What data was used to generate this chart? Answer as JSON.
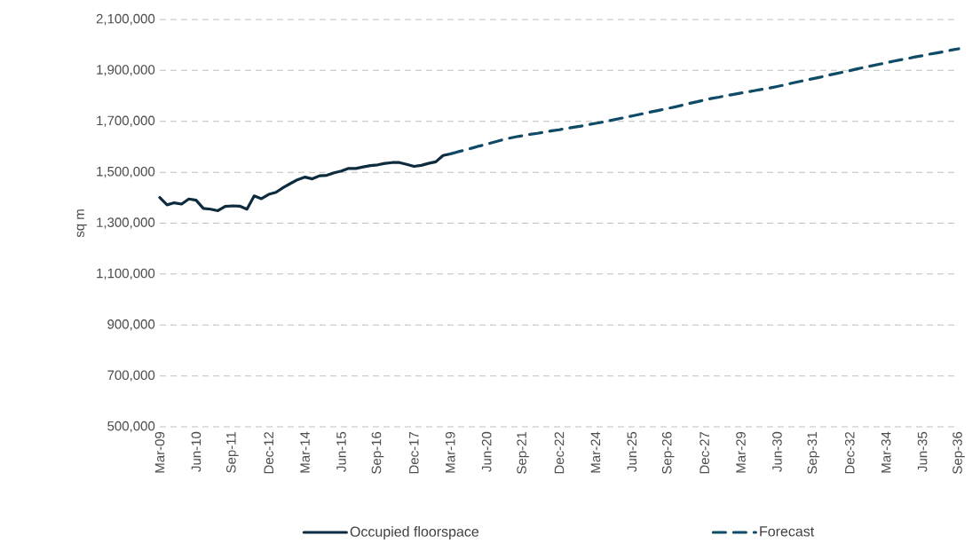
{
  "chart_data": {
    "type": "line",
    "ylabel": "sq m",
    "categories": [
      "Mar-09",
      null,
      null,
      null,
      null,
      "Jun-10",
      null,
      null,
      null,
      null,
      "Sep-11",
      null,
      null,
      null,
      null,
      "Dec-12",
      null,
      null,
      null,
      null,
      "Mar-14",
      null,
      null,
      null,
      null,
      "Jun-15",
      null,
      null,
      null,
      null,
      "Sep-16",
      null,
      null,
      null,
      null,
      "Dec-17",
      null,
      null,
      null,
      null,
      "Mar-19",
      null,
      null,
      null,
      null,
      "Jun-20",
      null,
      null,
      null,
      null,
      "Sep-21",
      null,
      null,
      null,
      null,
      "Dec-22",
      null,
      null,
      null,
      null,
      "Mar-24",
      null,
      null,
      null,
      null,
      "Jun-25",
      null,
      null,
      null,
      null,
      "Sep-26",
      null,
      null,
      null,
      null,
      "Dec-27",
      null,
      null,
      null,
      null,
      "Mar-29",
      null,
      null,
      null,
      null,
      "Jun-30",
      null,
      null,
      null,
      null,
      "Sep-31",
      null,
      null,
      null,
      null,
      "Dec-32",
      null,
      null,
      null,
      null,
      "Mar-34",
      null,
      null,
      null,
      null,
      "Jun-35",
      null,
      null,
      null,
      null,
      "Sep-36"
    ],
    "series": [
      {
        "name": "Occupied floorspace",
        "color": "#0d2b3e",
        "line_style": "solid",
        "values": [
          1401000,
          1372000,
          1380000,
          1375000,
          1395000,
          1390000,
          1358000,
          1355000,
          1349000,
          1366000,
          1368000,
          1367000,
          1355000,
          1407000,
          1396000,
          1413000,
          1421000,
          1440000,
          1456000,
          1471000,
          1481000,
          1474000,
          1486000,
          1488000,
          1498000,
          1505000,
          1515000,
          1515000,
          1521000,
          1526000,
          1529000,
          1535000,
          1538000,
          1538000,
          1531000,
          1523000,
          1527000,
          1535000,
          1541000,
          1566000,
          1572000,
          null,
          null,
          null,
          null,
          null,
          null,
          null,
          null,
          null,
          null,
          null,
          null,
          null,
          null,
          null,
          null,
          null,
          null,
          null,
          null,
          null,
          null,
          null,
          null,
          null,
          null,
          null,
          null,
          null,
          null,
          null,
          null,
          null,
          null,
          null,
          null,
          null,
          null,
          null,
          null,
          null,
          null,
          null,
          null,
          null,
          null,
          null,
          null,
          null,
          null,
          null,
          null,
          null,
          null,
          null,
          null,
          null,
          null,
          null,
          null,
          null,
          null,
          null,
          null,
          null,
          null,
          null,
          null,
          null,
          null
        ]
      },
      {
        "name": "Forecast",
        "color": "#0f4a66",
        "line_style": "dashed",
        "values": [
          null,
          null,
          null,
          null,
          null,
          null,
          null,
          null,
          null,
          null,
          null,
          null,
          null,
          null,
          null,
          null,
          null,
          null,
          null,
          null,
          null,
          null,
          null,
          null,
          null,
          null,
          null,
          null,
          null,
          null,
          null,
          null,
          null,
          null,
          null,
          null,
          null,
          null,
          null,
          null,
          1572000,
          1580000,
          1587000,
          1595000,
          1603000,
          1610000,
          1618000,
          1626000,
          1633000,
          1639000,
          1644000,
          1649000,
          1653000,
          1658000,
          1663000,
          1667000,
          1672000,
          1677000,
          1681000,
          1687000,
          1692000,
          1697000,
          1703000,
          1709000,
          1715000,
          1721000,
          1727000,
          1733000,
          1739000,
          1745000,
          1751000,
          1757000,
          1764000,
          1771000,
          1777000,
          1784000,
          1790000,
          1795000,
          1801000,
          1806000,
          1811000,
          1816000,
          1821000,
          1826000,
          1831000,
          1837000,
          1843000,
          1850000,
          1856000,
          1862000,
          1868000,
          1874000,
          1881000,
          1887000,
          1893000,
          1899000,
          1906000,
          1912000,
          1918000,
          1924000,
          1930000,
          1936000,
          1942000,
          1947000,
          1953000,
          1958000,
          1964000,
          1969000,
          1974000,
          1980000,
          1985000
        ]
      }
    ],
    "ylim": [
      500000,
      2100000
    ],
    "yticks": [
      {
        "value": 500000,
        "label": "500,000"
      },
      {
        "value": 700000,
        "label": "700,000"
      },
      {
        "value": 900000,
        "label": "900,000"
      },
      {
        "value": 1100000,
        "label": "1,100,000"
      },
      {
        "value": 1300000,
        "label": "1,300,000"
      },
      {
        "value": 1500000,
        "label": "1,500,000"
      },
      {
        "value": 1700000,
        "label": "1,700,000"
      },
      {
        "value": 1900000,
        "label": "1,900,000"
      },
      {
        "value": 2100000,
        "label": "2,100,000"
      }
    ],
    "grid": "y",
    "legend": "bottom"
  }
}
